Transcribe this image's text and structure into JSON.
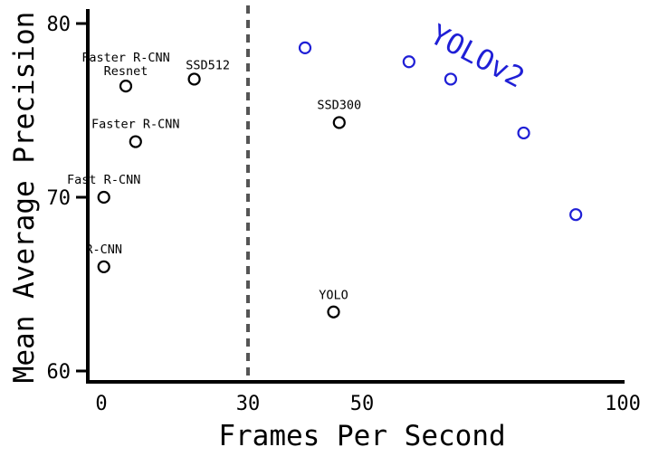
{
  "chart_data": {
    "type": "scatter",
    "xlabel": "Frames Per Second",
    "ylabel": "Mean Average Precision",
    "xlim": [
      0,
      100
    ],
    "ylim": [
      60,
      80
    ],
    "xticks": [
      "0",
      "30",
      "50",
      "100"
    ],
    "yticks": [
      "60",
      "70",
      "80"
    ],
    "threshold": {
      "x": 30,
      "style": "dashed"
    },
    "colors": {
      "others": "#000000",
      "yolov2": "#1f1fd6",
      "threshold": "#555555"
    },
    "series": [
      {
        "name": "",
        "points": [
          {
            "x": 0.5,
            "y": 66.0,
            "label": [
              "R-CNN"
            ]
          },
          {
            "x": 0.5,
            "y": 70.0,
            "label": [
              "Fast R-CNN"
            ]
          },
          {
            "x": 7,
            "y": 73.2,
            "label": [
              "Faster R-CNN"
            ]
          },
          {
            "x": 5,
            "y": 76.4,
            "label": [
              "Faster R-CNN",
              "Resnet"
            ]
          },
          {
            "x": 19,
            "y": 76.8,
            "label": [
              "SSD512"
            ]
          },
          {
            "x": 46,
            "y": 74.3,
            "label": [
              "SSD300"
            ]
          },
          {
            "x": 45,
            "y": 63.4,
            "label": [
              "YOLO"
            ]
          }
        ]
      },
      {
        "name": "YOLOv2",
        "points": [
          {
            "x": 40,
            "y": 78.6
          },
          {
            "x": 59,
            "y": 77.8
          },
          {
            "x": 67,
            "y": 76.8
          },
          {
            "x": 81,
            "y": 73.7
          },
          {
            "x": 91,
            "y": 69.0
          }
        ]
      }
    ]
  }
}
